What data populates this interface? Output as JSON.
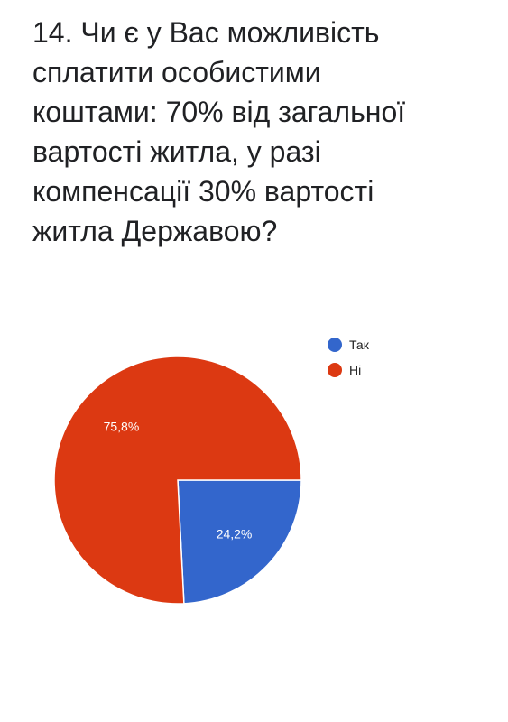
{
  "question": {
    "lines": [
      "14. Чи є у Вас можливість",
      "сплатити особистими",
      "коштами: 70% від загальної",
      "вартості житла, у разі",
      "компенсації 30% вартості",
      "житла Державою?"
    ]
  },
  "chart_data": {
    "type": "pie",
    "title": "",
    "legend_position": "top-right",
    "slices": [
      {
        "label": "Так",
        "value": 24.2,
        "display": "24,2%",
        "color": "#3366cc"
      },
      {
        "label": "Ні",
        "value": 75.8,
        "display": "75,8%",
        "color": "#dc3912"
      }
    ]
  }
}
